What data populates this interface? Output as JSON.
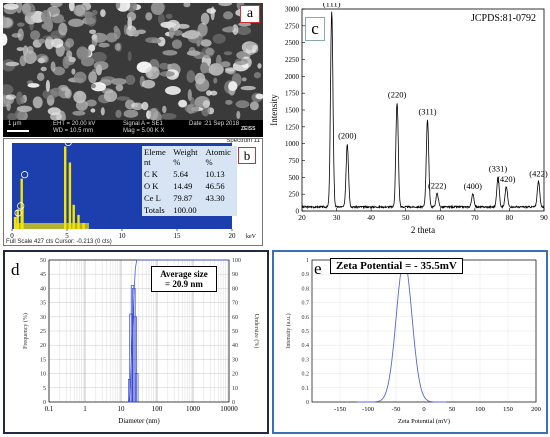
{
  "panels": {
    "a": {
      "letter": "a",
      "scale": "1 μm",
      "info_left": [
        "EHT = 20.00 kV",
        "WD = 10.5 mm"
      ],
      "info_mid": [
        "Signal A = SE1",
        "Mag = 5.00 K X"
      ],
      "info_right": [
        "Date :21 Sep 2018"
      ],
      "badge": "ZEISS",
      "spectrum": "Spectrum 11"
    },
    "b": {
      "letter": "b",
      "table_headers": [
        [
          "Eleme",
          "nt"
        ],
        [
          "Weight",
          "%"
        ],
        [
          "Atomic",
          "%"
        ]
      ],
      "table_rows": [
        [
          "C K",
          "5.64",
          "10.13"
        ],
        [
          "O K",
          "14.49",
          "46.56"
        ],
        [
          "Ce L",
          "79.87",
          "43.30"
        ],
        [
          "Totals",
          "100.00",
          ""
        ]
      ],
      "x_ticks": [
        "0",
        "5",
        "10",
        "15",
        "20"
      ],
      "x_unit": "keV",
      "footer": "Full Scale 427 cts Cursor: -0.213 (0 cts)"
    },
    "c": {
      "letter": "c",
      "reference": "JCPDS:81-0792"
    },
    "d": {
      "letter": "d",
      "annotation": [
        "Average size",
        "= 20.9 nm"
      ]
    },
    "e": {
      "letter": "e",
      "annotation": "Zeta Potential = - 35.5mV"
    }
  },
  "chart_data": [
    {
      "type": "line",
      "panel": "c",
      "xlabel": "2 theta",
      "ylabel": "Intensity",
      "xlim": [
        20,
        90
      ],
      "ylim": [
        0,
        3000
      ],
      "x_ticks": [
        20,
        30,
        40,
        50,
        60,
        70,
        80,
        90
      ],
      "y_ticks": [
        0,
        250,
        500,
        750,
        1000,
        1250,
        1500,
        1750,
        2000,
        2250,
        2500,
        2750,
        3000
      ],
      "baseline": 60,
      "peaks": [
        {
          "x": 28.6,
          "y": 2900,
          "label": "(111)"
        },
        {
          "x": 33.1,
          "y": 940,
          "label": "(200)"
        },
        {
          "x": 47.5,
          "y": 1550,
          "label": "(220)"
        },
        {
          "x": 56.3,
          "y": 1300,
          "label": "(311)"
        },
        {
          "x": 59.1,
          "y": 200,
          "label": "(222)"
        },
        {
          "x": 69.4,
          "y": 190,
          "label": "(400)"
        },
        {
          "x": 76.7,
          "y": 450,
          "label": "(331)"
        },
        {
          "x": 79.1,
          "y": 300,
          "label": "(420)"
        },
        {
          "x": 88.4,
          "y": 380,
          "label": "(422)"
        }
      ]
    },
    {
      "type": "bar",
      "panel": "d",
      "xlabel": "Diameter (nm)",
      "ylabel": "Frequency (%)",
      "ylabel_right": "Undersize (%)",
      "x_scale": "log",
      "x_ticks": [
        "0.1",
        "1",
        "10",
        "100",
        "1000",
        "10000"
      ],
      "y_ticks": [
        0,
        5,
        10,
        15,
        20,
        25,
        30,
        35,
        40,
        45,
        50
      ],
      "y2_ticks": [
        0,
        10,
        20,
        30,
        40,
        50,
        60,
        70,
        80,
        90,
        100
      ],
      "bars": [
        {
          "x": 17.5,
          "y": 8
        },
        {
          "x": 19.0,
          "y": 31
        },
        {
          "x": 20.9,
          "y": 41
        },
        {
          "x": 22.8,
          "y": 40
        },
        {
          "x": 25.0,
          "y": 30
        },
        {
          "x": 27.3,
          "y": 10
        }
      ]
    },
    {
      "type": "line",
      "panel": "e",
      "xlabel": "Zeta Potential (mV)",
      "ylabel": "Intensity (a.u.)",
      "xlim": [
        -200,
        200
      ],
      "ylim": [
        0,
        1.0
      ],
      "x_ticks": [
        -150,
        -100,
        -50,
        0,
        50,
        100,
        150,
        200
      ],
      "y_ticks": [
        0,
        0.1,
        0.2,
        0.3,
        0.4,
        0.5,
        0.6,
        0.7,
        0.8,
        0.9,
        1
      ],
      "peak_x": -35.5,
      "peak_y": 1.0,
      "width": 14
    }
  ]
}
